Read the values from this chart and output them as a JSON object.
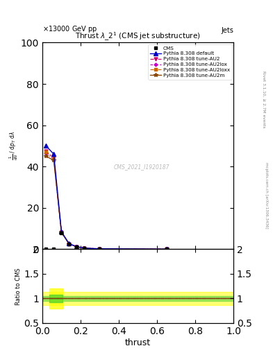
{
  "title": "Thrust $\\lambda\\_2^1$ (CMS jet substructure)",
  "header_left": "$\\times$13000 GeV pp",
  "header_right": "Jets",
  "right_label_top": "Rivet 3.1.10, ≥ 2.7M events",
  "right_label_bot": "mcplots.cern.ch [arXiv:1306.3436]",
  "cms_label": "CMS_2021_I1920187",
  "xlabel": "thrust",
  "ylabel_line1": "mathrm d$^2$N",
  "ylabel_line2": "mathrm d p$_T$ mathrm d lambda",
  "ylabel_ratio": "Ratio to CMS",
  "ylim_main": [
    0,
    100
  ],
  "ylim_ratio": [
    0.5,
    2.0
  ],
  "xlim": [
    0.0,
    1.0
  ],
  "thrust_x": [
    0.02,
    0.06,
    0.1,
    0.14,
    0.18,
    0.22,
    0.3,
    0.65
  ],
  "cms_y": [
    0.0,
    0.0,
    8.0,
    2.5,
    1.2,
    0.5,
    0.2,
    0.05
  ],
  "pythia_default_y": [
    50.0,
    46.0,
    8.5,
    2.7,
    1.25,
    0.55,
    0.22,
    0.055
  ],
  "pythia_AU2_y": [
    47.5,
    44.0,
    8.3,
    2.65,
    1.22,
    0.53,
    0.21,
    0.05
  ],
  "pythia_AU2lox_y": [
    46.5,
    43.5,
    8.2,
    2.6,
    1.2,
    0.52,
    0.21,
    0.05
  ],
  "pythia_AU2loxx_y": [
    47.0,
    44.0,
    8.3,
    2.65,
    1.22,
    0.53,
    0.21,
    0.05
  ],
  "pythia_AU2m_y": [
    45.0,
    43.0,
    8.1,
    2.55,
    1.18,
    0.51,
    0.2,
    0.05
  ],
  "color_default": "#0000cc",
  "color_AU2": "#cc0066",
  "color_AU2lox": "#cc00cc",
  "color_AU2loxx": "#cc6600",
  "color_AU2m": "#884400",
  "bg_color": "#ffffff"
}
